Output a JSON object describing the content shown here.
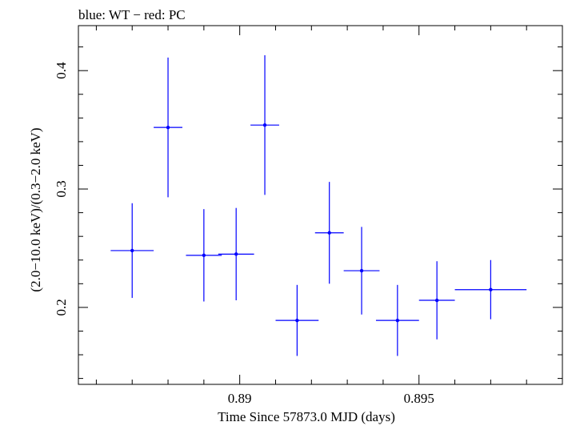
{
  "chart_data": {
    "type": "scatter",
    "title": "blue: WT − red: PC",
    "xlabel": "Time Since 57873.0 MJD (days)",
    "ylabel": "(2.0−10.0 keV)/(0.3−2.0 keV)",
    "xlim": [
      0.8855,
      0.899
    ],
    "ylim": [
      0.135,
      0.438
    ],
    "x_ticks": [
      0.89,
      0.895
    ],
    "x_tick_labels": [
      "0.89",
      "0.895"
    ],
    "y_ticks": [
      0.2,
      0.3,
      0.4
    ],
    "y_tick_labels": [
      "0.2",
      "0.3",
      "0.4"
    ],
    "grid": false,
    "series": [
      {
        "color": "#0000ff",
        "points": [
          {
            "x": 0.887,
            "xerr": 0.0006,
            "y": 0.248,
            "yerr": 0.04
          },
          {
            "x": 0.888,
            "xerr": 0.0004,
            "y": 0.352,
            "yerr": 0.059
          },
          {
            "x": 0.889,
            "xerr": 0.0005,
            "y": 0.244,
            "yerr": 0.039
          },
          {
            "x": 0.8899,
            "xerr": 0.0005,
            "y": 0.245,
            "yerr": 0.039
          },
          {
            "x": 0.8907,
            "xerr": 0.0004,
            "y": 0.354,
            "yerr": 0.059
          },
          {
            "x": 0.8916,
            "xerr": 0.0006,
            "y": 0.189,
            "yerr": 0.03
          },
          {
            "x": 0.8925,
            "xerr": 0.0004,
            "y": 0.263,
            "yerr": 0.043
          },
          {
            "x": 0.8934,
            "xerr": 0.0005,
            "y": 0.231,
            "yerr": 0.037
          },
          {
            "x": 0.8944,
            "xerr": 0.0006,
            "y": 0.189,
            "yerr": 0.03
          },
          {
            "x": 0.8955,
            "xerr": 0.0005,
            "y": 0.206,
            "yerr": 0.033
          },
          {
            "x": 0.897,
            "xerr": 0.001,
            "y": 0.215,
            "yerr": 0.025
          }
        ]
      }
    ]
  }
}
